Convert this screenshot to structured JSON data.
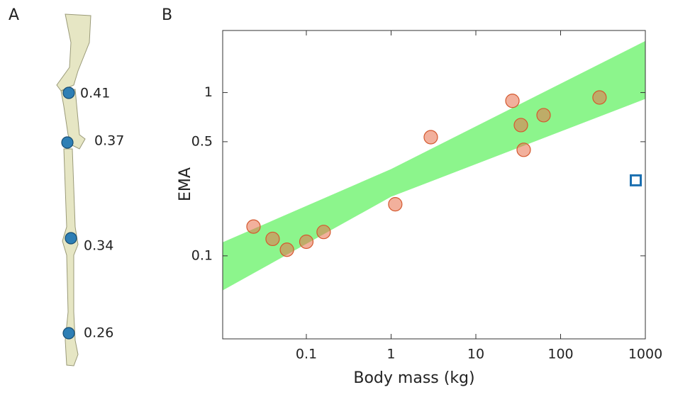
{
  "panel_labels": [
    "A",
    "B"
  ],
  "bone_joints": [
    0.41,
    0.37,
    0.34,
    0.26
  ],
  "chart_data": {
    "type": "scatter",
    "xlabel": "Body mass (kg)",
    "ylabel": "EMA",
    "log_x": true,
    "log_y": true,
    "xlim": [
      0.0103,
      1000
    ],
    "ylim": [
      0.031,
      2.4
    ],
    "xticks": [
      0.1,
      1,
      10,
      100,
      1000
    ],
    "yticks": [
      0.1,
      0.5,
      1
    ],
    "band": {
      "color": "#8cf58c",
      "x": [
        0.0103,
        1,
        1000
      ],
      "upper": [
        0.121,
        0.34,
        2.07
      ],
      "lower": [
        0.0614,
        0.23,
        0.914
      ]
    },
    "series": [
      {
        "marker": "circle",
        "color": "#e8704a",
        "edge": "#d4582e",
        "x": [
          0.0238,
          0.04,
          0.059,
          0.1,
          0.16,
          1.12,
          2.94,
          27,
          34,
          36.7,
          63,
          288
        ],
        "values": [
          0.151,
          0.127,
          0.109,
          0.122,
          0.14,
          0.207,
          0.533,
          0.89,
          0.632,
          0.446,
          0.727,
          0.933
        ]
      },
      {
        "marker": "square",
        "color": "#1a6fb0",
        "x": [
          771
        ],
        "values": [
          0.29
        ]
      }
    ]
  }
}
